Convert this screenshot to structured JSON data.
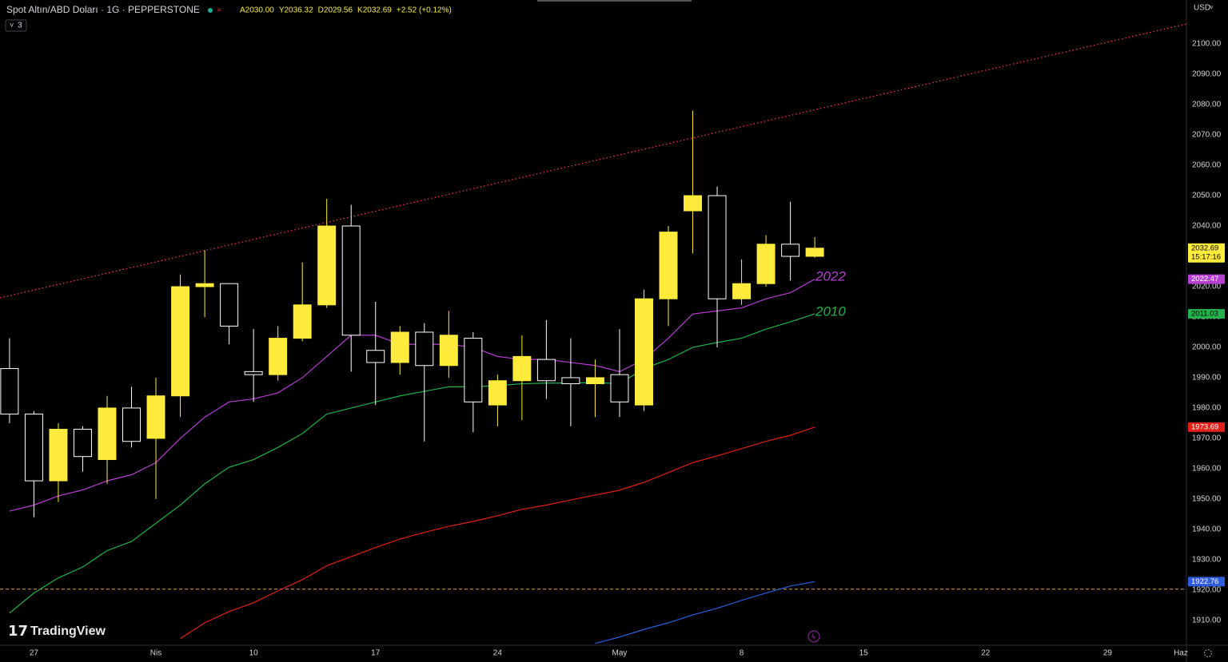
{
  "chart_data": {
    "type": "candlestick",
    "title": "Spot Altın/ABD Doları · 1G · PEPPERSTONE",
    "ohlc_legend": [
      "A2030.00",
      "Y2036.32",
      "D2029.56",
      "K2032.69",
      "+2.52 (+0.12%)"
    ],
    "indicator_count": "3",
    "currency": "USD",
    "countdown": "15:17:16",
    "brand": "TradingView",
    "annotations": [
      "2022",
      "2010"
    ],
    "up_color": "#ffeb3b",
    "down_color": "#ffffff",
    "x": [
      0,
      1,
      2,
      3,
      4,
      5,
      6,
      7,
      8,
      9,
      10,
      11,
      12,
      13,
      14,
      15,
      16,
      17,
      18,
      19,
      20,
      21,
      22,
      23,
      24,
      25,
      26,
      27,
      28,
      29,
      30,
      31,
      32,
      33
    ],
    "open": [
      1993,
      1978,
      1956,
      1973,
      1963,
      1980,
      1970,
      1984,
      2020,
      2021,
      1992,
      1991,
      2003,
      2014,
      2040,
      1999,
      1995,
      2005,
      1994,
      2003,
      1981,
      1989,
      1996,
      1990,
      1988,
      1991,
      1981,
      2016,
      2045,
      2050,
      2016,
      2021,
      2034,
      2030
    ],
    "high": [
      2003,
      1979,
      1975,
      1974,
      1984,
      1987,
      1990,
      2024,
      2032,
      2021,
      2006,
      2007,
      2028,
      2049,
      2047,
      2015,
      2007,
      2008,
      2012,
      2005,
      1991,
      2004,
      2009,
      2003,
      1996,
      2006,
      2019,
      2040,
      2078,
      2053,
      2029,
      2037,
      2048,
      2036.32
    ],
    "low": [
      1975,
      1944,
      1949,
      1959,
      1955,
      1967,
      1950,
      1977,
      2010,
      2001,
      1982,
      1989,
      2002,
      2013,
      1992,
      1981,
      1991,
      1969,
      1990,
      1972,
      1974,
      1976,
      1983,
      1974,
      1977,
      1977,
      1979,
      2007,
      2031,
      2000,
      2014,
      2020,
      2022,
      2029.56
    ],
    "close": [
      1978,
      1956,
      1973,
      1964,
      1980,
      1969,
      1984,
      2020,
      2021,
      2007,
      1991,
      2003,
      2014,
      2040,
      2004,
      1995,
      2005,
      1994,
      2004,
      1982,
      1989,
      1997,
      1989,
      1988,
      1990,
      1982,
      2016,
      2038,
      2050,
      2016,
      2021,
      2034,
      2030,
      2032.69
    ],
    "series": [
      {
        "color": "#b43fd1",
        "values": [
          1946,
          1948,
          1951,
          1953,
          1956,
          1958,
          1962,
          1970,
          1977,
          1982,
          1983,
          1985,
          1990,
          1997,
          2004,
          2004,
          2001,
          2001,
          2001,
          2000,
          1997,
          1996,
          1996,
          1995,
          1994,
          1992,
          1996,
          2003,
          2011,
          2012,
          2013,
          2016,
          2018,
          2022.47
        ]
      },
      {
        "color": "#22b14c",
        "values": [
          1912.4,
          1919,
          1924,
          1927.6,
          1933,
          1936,
          1942,
          1948,
          1955,
          1960.5,
          1963,
          1967,
          1971.6,
          1978,
          1980,
          1982,
          1984,
          1985.5,
          1987,
          1987,
          1987.4,
          1988,
          1988.2,
          1988.2,
          1988.4,
          1988,
          1993,
          1996,
          2000,
          2001.6,
          2003,
          2006,
          2008.4,
          2011.03
        ]
      },
      {
        "color": "#e0201b",
        "values": [
          null,
          null,
          null,
          null,
          null,
          null,
          null,
          1904,
          1909.2,
          1912.9,
          1915.8,
          1919.7,
          1923.4,
          1928,
          1931,
          1934,
          1936.8,
          1939,
          1941,
          1942.6,
          1944.5,
          1946.6,
          1948,
          1949.7,
          1951.3,
          1952.9,
          1955.5,
          1958.7,
          1962,
          1964.2,
          1966.6,
          1969,
          1971,
          1973.69
        ]
      },
      {
        "color": "#2e5bdc",
        "values": [
          null,
          null,
          null,
          null,
          null,
          null,
          null,
          null,
          null,
          null,
          null,
          null,
          null,
          null,
          null,
          null,
          null,
          null,
          null,
          null,
          null,
          null,
          null,
          null,
          1902.4,
          1904.5,
          1907,
          1909.2,
          1911.8,
          1914,
          1916.6,
          1919,
          1921.3,
          1922.76
        ]
      }
    ],
    "trendline": {
      "x": [
        -0.39,
        48.23
      ],
      "y": [
        2016.3,
        2106.6
      ],
      "color": "#f23645"
    },
    "hline": {
      "value": 1920.3,
      "color": "#e8a33d"
    },
    "xlim": [
      -0.39,
      48.23
    ],
    "ylim": [
      1901.8,
      2114.5
    ],
    "grid": false,
    "xticks": [
      {
        "value": 1,
        "label": "27"
      },
      {
        "value": 6,
        "label": "Nis"
      },
      {
        "value": 10,
        "label": "10"
      },
      {
        "value": 15,
        "label": "17"
      },
      {
        "value": 20,
        "label": "24"
      },
      {
        "value": 25,
        "label": "May"
      },
      {
        "value": 30,
        "label": "8"
      },
      {
        "value": 35,
        "label": "15"
      },
      {
        "value": 40,
        "label": "22"
      },
      {
        "value": 45,
        "label": "29"
      },
      {
        "value": 48,
        "label": "Haz"
      }
    ],
    "yticks": [
      {
        "value": 1910,
        "label": "1910.00"
      },
      {
        "value": 1920,
        "label": "1920.00"
      },
      {
        "value": 1930,
        "label": "1930.00"
      },
      {
        "value": 1940,
        "label": "1940.00"
      },
      {
        "value": 1950,
        "label": "1950.00"
      },
      {
        "value": 1960,
        "label": "1960.00"
      },
      {
        "value": 1970,
        "label": "1970.00"
      },
      {
        "value": 1980,
        "label": "1980.00"
      },
      {
        "value": 1990,
        "label": "1990.00"
      },
      {
        "value": 2000,
        "label": "2000.00"
      },
      {
        "value": 2010,
        "label": "2010.00"
      },
      {
        "value": 2020,
        "label": "2020.00"
      },
      {
        "value": 2030,
        "label": "2030.00"
      },
      {
        "value": 2040,
        "label": "2040.00"
      },
      {
        "value": 2050,
        "label": "2050.00"
      },
      {
        "value": 2060,
        "label": "2060.00"
      },
      {
        "value": 2070,
        "label": "2070.00"
      },
      {
        "value": 2080,
        "label": "2080.00"
      },
      {
        "value": 2090,
        "label": "2090.00"
      },
      {
        "value": 2100,
        "label": "2100.00"
      }
    ]
  }
}
